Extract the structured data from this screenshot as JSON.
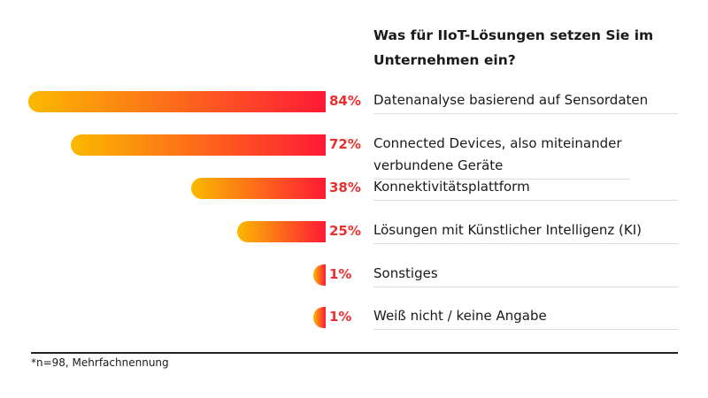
{
  "chart_data": {
    "type": "bar",
    "orientation": "horizontal",
    "title": "Was für IIoT-Lösungen setzen Sie im Unternehmen ein?",
    "categories": [
      "Datenanalyse basierend auf Sensordaten",
      "Connected Devices, also miteinander verbundene Geräte",
      "Konnektivitätsplattform",
      "Lösungen mit Künstlicher Intelligenz (KI)",
      "Sonstiges",
      "Weiß nicht / keine Angabe"
    ],
    "values": [
      84,
      72,
      38,
      25,
      1,
      1
    ],
    "value_labels": [
      "84%",
      "72%",
      "38%",
      "25%",
      "1%",
      "1%"
    ],
    "unit": "%",
    "colors": {
      "gradient_start": "#fbb900",
      "gradient_end": "#ff1a35",
      "value_text": "#e8302f"
    },
    "footnote": "*n=98, Mehrfachnennung"
  }
}
